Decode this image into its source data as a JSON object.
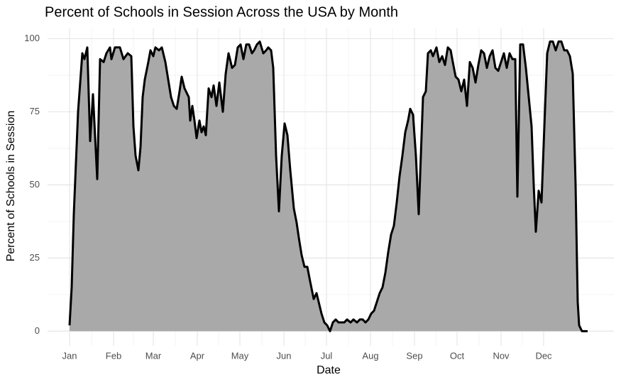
{
  "chart_data": {
    "type": "area",
    "title": "Percent of Schools in Session Across the USA by Month",
    "x_label": "Date",
    "y_label": "Percent of Schools in Session",
    "x": [
      1,
      2.5,
      4,
      7,
      10,
      11.5,
      13.5,
      15.5,
      17.5,
      20.5,
      22.5,
      25,
      27,
      29.5,
      30.5,
      33,
      36.5,
      39,
      42,
      44.5,
      46,
      47.5,
      49.5,
      51,
      52.5,
      54,
      56.5,
      58,
      60,
      61.5,
      64,
      66,
      68.5,
      70.5,
      72.5,
      74.5,
      76.5,
      78.5,
      80,
      82,
      85,
      86,
      87.5,
      89,
      90.5,
      92.5,
      94,
      95.5,
      97,
      99,
      101,
      102.5,
      104.5,
      106.5,
      109,
      111,
      113,
      115.5,
      117.5,
      119.5,
      121.5,
      123.5,
      125.5,
      127.5,
      129.5,
      131,
      133,
      135,
      137.5,
      139.5,
      141,
      143,
      144.5,
      146.5,
      148.5,
      150.5,
      152.5,
      154.5,
      156.5,
      159,
      161,
      162.5,
      164.5,
      166.5,
      168.5,
      170.5,
      173,
      175,
      176.5,
      178.5,
      180.5,
      182.5,
      184.5,
      186.5,
      188.5,
      190.5,
      192.5,
      194.5,
      196.5,
      199,
      201,
      203.5,
      205.5,
      207.5,
      209.5,
      211.5,
      213.5,
      215.5,
      217.5,
      219.5,
      221.5,
      223.5,
      225.5,
      227.5,
      229.5,
      231.5,
      233.5,
      235.5,
      237.5,
      239.5,
      241,
      243,
      245,
      247,
      248.5,
      250,
      252,
      253.5,
      255.5,
      257,
      259.5,
      261.5,
      263.5,
      265.5,
      267.5,
      269.5,
      271,
      273,
      275,
      277,
      279,
      281,
      283,
      285,
      287,
      289,
      291,
      293,
      295,
      297,
      299,
      301,
      303,
      305,
      307,
      309,
      311,
      313,
      315,
      316.5,
      318.5,
      320.5,
      322.5,
      324.5,
      326.5,
      328,
      329.5,
      331.5,
      333.5,
      335.5,
      337.5,
      339.5,
      341.5,
      343.5,
      345.5,
      347.5,
      349.5,
      351.5,
      353.5,
      355.5,
      357.5,
      359,
      360,
      362,
      366
    ],
    "series": [
      {
        "color": "#000000",
        "fill": "#a9a9a9",
        "values": [
          2,
          15,
          40,
          75,
          95,
          93,
          97,
          65,
          81,
          52,
          93,
          92,
          95,
          97,
          93,
          97,
          97,
          93,
          95,
          94,
          70,
          60,
          55,
          63,
          80,
          86,
          92,
          96,
          94,
          97,
          96,
          97,
          92,
          86,
          80,
          77,
          76,
          82,
          87,
          83,
          80,
          72,
          77,
          72,
          66,
          72,
          68,
          70,
          67,
          83,
          80,
          84,
          77,
          85,
          75,
          88,
          95,
          90,
          91,
          97,
          98,
          93,
          98,
          98,
          95,
          96,
          98,
          99,
          95,
          96,
          97,
          96,
          90,
          60,
          41,
          60,
          71,
          67,
          55,
          42,
          37,
          32,
          26,
          22,
          22,
          17,
          11,
          13,
          10,
          6,
          3,
          2,
          0,
          3,
          4,
          3,
          3,
          3,
          4,
          3,
          4,
          3,
          4,
          4,
          3,
          4,
          6,
          7,
          10,
          13,
          15,
          20,
          27,
          33,
          36,
          44,
          53,
          60,
          68,
          72,
          76,
          74,
          60,
          40,
          60,
          80,
          82,
          95,
          96,
          94,
          97,
          92,
          94,
          91,
          97,
          96,
          92,
          87,
          86,
          82,
          86,
          77,
          92,
          90,
          85,
          91,
          96,
          95,
          90,
          94,
          96,
          90,
          89,
          92,
          95,
          90,
          95,
          93,
          93,
          46,
          98,
          98,
          90,
          80,
          70,
          50,
          34,
          48,
          44,
          70,
          95,
          99,
          99,
          96,
          99,
          99,
          96,
          96,
          94,
          88,
          50,
          10,
          2,
          0,
          0
        ]
      }
    ],
    "xlim": [
      -14.5,
      384.5
    ],
    "xticks": [
      {
        "value": 1,
        "label": "Jan"
      },
      {
        "value": 32,
        "label": "Feb"
      },
      {
        "value": 60,
        "label": "Mar"
      },
      {
        "value": 91,
        "label": "Apr"
      },
      {
        "value": 121,
        "label": "May"
      },
      {
        "value": 152,
        "label": "Jun"
      },
      {
        "value": 182,
        "label": "Jul"
      },
      {
        "value": 213,
        "label": "Aug"
      },
      {
        "value": 244,
        "label": "Sep"
      },
      {
        "value": 274,
        "label": "Oct"
      },
      {
        "value": 305,
        "label": "Nov"
      },
      {
        "value": 335,
        "label": "Dec"
      }
    ],
    "ylim": [
      -5,
      103.5
    ],
    "yticks": [
      0,
      25,
      50,
      75,
      100
    ],
    "grid": true
  }
}
